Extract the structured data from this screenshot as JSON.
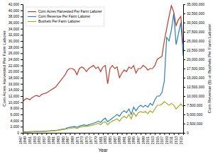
{
  "chart_data": {
    "type": "line",
    "x_label": "Year",
    "y_label": "Corn Acres Harvested Per Farm Laborer",
    "y2_label": "Corn Revenue ($) or Bushels Per Farm Laborer",
    "x": [
      1947,
      1948,
      1949,
      1950,
      1951,
      1952,
      1953,
      1954,
      1955,
      1956,
      1957,
      1958,
      1959,
      1960,
      1961,
      1962,
      1963,
      1964,
      1965,
      1966,
      1967,
      1968,
      1969,
      1970,
      1971,
      1972,
      1973,
      1974,
      1975,
      1976,
      1977,
      1978,
      1979,
      1980,
      1981,
      1982,
      1983,
      1984,
      1985,
      1986,
      1987,
      1988,
      1989,
      1990,
      1991,
      1992,
      1993,
      1994,
      1995,
      1996,
      1997,
      1998,
      1999,
      2000,
      2001,
      2002,
      2003,
      2004,
      2005,
      2006,
      2007,
      2008,
      2009,
      2010,
      2011,
      2012,
      2013,
      2014,
      2015
    ],
    "series": [
      {
        "name": "Corn Acres Harvested Per Farm Laborer",
        "color": "#c0392b",
        "axis": "y",
        "values": [
          10000,
          11000,
          11200,
          10800,
          11500,
          12000,
          12200,
          11800,
          12500,
          12800,
          13000,
          13500,
          14000,
          14500,
          15000,
          16000,
          17000,
          18000,
          19000,
          20500,
          21000,
          21000,
          20500,
          19000,
          21000,
          21500,
          21000,
          20000,
          21000,
          21500,
          22000,
          21000,
          21500,
          20000,
          21500,
          22000,
          16000,
          21000,
          22000,
          21000,
          21500,
          18000,
          19500,
          20500,
          20000,
          21500,
          21000,
          22000,
          19500,
          21000,
          21000,
          22000,
          21500,
          20500,
          21000,
          21000,
          22000,
          24000,
          24500,
          25000,
          30000,
          34000,
          38000,
          41500,
          39500,
          35000,
          37000,
          38000,
          29000
        ]
      },
      {
        "name": "Corn Revenue Per Farm Laborer",
        "color": "#2980b9",
        "axis": "y2",
        "values": [
          200000,
          250000,
          280000,
          300000,
          320000,
          350000,
          370000,
          360000,
          380000,
          420000,
          450000,
          500000,
          550000,
          600000,
          650000,
          750000,
          900000,
          1000000,
          1100000,
          1400000,
          1500000,
          1600000,
          1700000,
          1500000,
          1800000,
          2000000,
          2200000,
          2000000,
          2200000,
          2400000,
          2600000,
          2800000,
          3200000,
          2800000,
          3500000,
          4000000,
          3000000,
          3500000,
          4000000,
          4500000,
          5000000,
          4500000,
          5500000,
          6000000,
          5500000,
          6500000,
          5000000,
          7000000,
          6000000,
          7000000,
          7500000,
          7000000,
          7500000,
          7000000,
          8000000,
          7500000,
          9000000,
          10000000,
          10000000,
          11000000,
          14000000,
          26000000,
          25000000,
          28000000,
          32500000,
          24000000,
          27000000,
          30000000,
          21000000
        ]
      },
      {
        "name": "Bushels Per Farm Laborer",
        "color": "#aaa820",
        "axis": "y2",
        "values": [
          100000,
          150000,
          200000,
          220000,
          250000,
          300000,
          320000,
          310000,
          350000,
          380000,
          400000,
          450000,
          500000,
          550000,
          600000,
          700000,
          800000,
          900000,
          1000000,
          1100000,
          1200000,
          1300000,
          1400000,
          1200000,
          1500000,
          1600000,
          1800000,
          1700000,
          1900000,
          2000000,
          2200000,
          2300000,
          2600000,
          2200000,
          2800000,
          3000000,
          2200000,
          2800000,
          3200000,
          3500000,
          3800000,
          3200000,
          4000000,
          4500000,
          4000000,
          5000000,
          3800000,
          5500000,
          4500000,
          5500000,
          5800000,
          5500000,
          5800000,
          5200000,
          6000000,
          5500000,
          6500000,
          7500000,
          7500000,
          7800000,
          8500000,
          8000000,
          7500000,
          8000000,
          7500000,
          6500000,
          7200000,
          7800000,
          7200000
        ]
      }
    ],
    "xlim": [
      1947,
      2015
    ],
    "xticks": [
      1947,
      1949,
      1951,
      1953,
      1955,
      1957,
      1959,
      1961,
      1963,
      1965,
      1967,
      1969,
      1971,
      1973,
      1975,
      1977,
      1979,
      1981,
      1983,
      1985,
      1987,
      1989,
      1991,
      1993,
      1995,
      1997,
      1999,
      2001,
      2003,
      2005,
      2007,
      2009,
      2011,
      2013,
      2015
    ],
    "ylim": [
      0,
      42000
    ],
    "yticks": [
      0,
      {
        "value": 2000,
        "label": "2,000"
      },
      {
        "value": 4000,
        "label": "4,000"
      },
      {
        "value": 6000,
        "label": "6,000"
      },
      {
        "value": 8000,
        "label": "8,000"
      },
      {
        "value": 10000,
        "label": "10,000"
      },
      {
        "value": 12000,
        "label": "12,000"
      },
      {
        "value": 14000,
        "label": "14,000"
      },
      {
        "value": 16000,
        "label": "16,000"
      },
      {
        "value": 18000,
        "label": "18,000"
      },
      {
        "value": 20000,
        "label": "20,000"
      },
      {
        "value": 22000,
        "label": "22,000"
      },
      {
        "value": 24000,
        "label": "24,000"
      },
      {
        "value": 26000,
        "label": "26,000"
      },
      {
        "value": 28000,
        "label": "28,000"
      },
      {
        "value": 30000,
        "label": "30,000"
      },
      {
        "value": 32000,
        "label": "32,000"
      },
      {
        "value": 34000,
        "label": "34,000"
      },
      {
        "value": 36000,
        "label": "36,000"
      },
      {
        "value": 38000,
        "label": "38,000"
      },
      {
        "value": 40000,
        "label": "40,000"
      },
      {
        "value": 42000,
        "label": "42,000"
      }
    ],
    "y2lim": [
      0,
      35000000
    ],
    "y2ticks": [
      0,
      {
        "value": 2500000,
        "label": "2,500,000"
      },
      {
        "value": 5000000,
        "label": "5,000,000"
      },
      {
        "value": 7500000,
        "label": "7,500,000"
      },
      {
        "value": 10000000,
        "label": "10,000,000"
      },
      {
        "value": 12500000,
        "label": "12,500,000"
      },
      {
        "value": 15000000,
        "label": "15,000,000"
      },
      {
        "value": 17500000,
        "label": "17,500,000"
      },
      {
        "value": 20000000,
        "label": "20,000,000"
      },
      {
        "value": 22500000,
        "label": "22,500,000"
      },
      {
        "value": 25000000,
        "label": "25,000,000"
      },
      {
        "value": 27500000,
        "label": "27,500,000"
      },
      {
        "value": 30000000,
        "label": "30,000,000"
      },
      {
        "value": 32500000,
        "label": "32,500,000"
      },
      {
        "value": 35000000,
        "label": "35,000,000"
      }
    ],
    "grid": false,
    "legend": "upper left"
  }
}
